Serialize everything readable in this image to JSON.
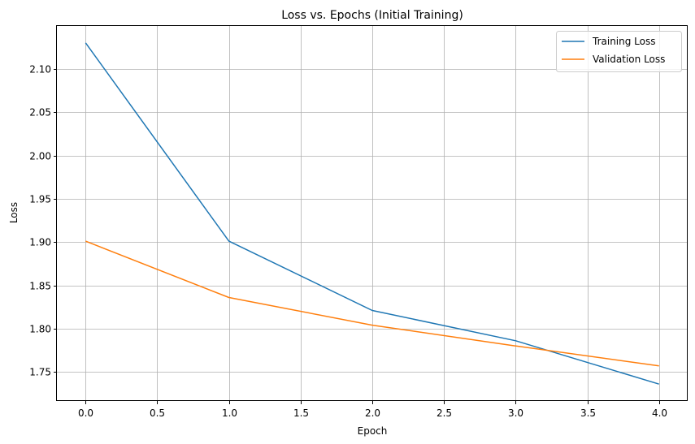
{
  "chart_data": {
    "type": "line",
    "title": "Loss vs. Epochs (Initial Training)",
    "xlabel": "Epoch",
    "ylabel": "Loss",
    "x": [
      0,
      1,
      2,
      3,
      4
    ],
    "series": [
      {
        "name": "Training Loss",
        "color": "#1f77b4",
        "values": [
          2.13,
          1.901,
          1.821,
          1.786,
          1.736
        ]
      },
      {
        "name": "Validation Loss",
        "color": "#ff7f0e",
        "values": [
          1.901,
          1.836,
          1.804,
          1.78,
          1.757
        ]
      }
    ],
    "xlim": [
      -0.2,
      4.2
    ],
    "ylim": [
      1.7165,
      2.1495
    ],
    "xticks": [
      "0.0",
      "0.5",
      "1.0",
      "1.5",
      "2.0",
      "2.5",
      "3.0",
      "3.5",
      "4.0"
    ],
    "yticks": [
      "1.75",
      "1.80",
      "1.85",
      "1.90",
      "1.95",
      "2.00",
      "2.05",
      "2.10"
    ],
    "grid": true,
    "legend_position": "top-right"
  }
}
